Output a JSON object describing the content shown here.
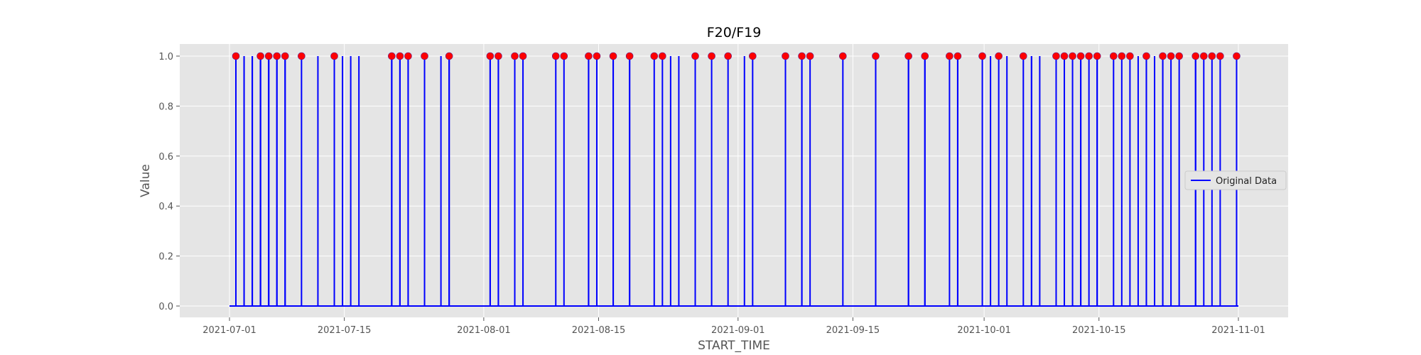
{
  "chart_data": {
    "type": "line",
    "title": "F20/F19",
    "xlabel": "START_TIME",
    "ylabel": "Value",
    "x_range": [
      "2021-07-01",
      "2021-11-01"
    ],
    "ylim": [
      0.0,
      1.0
    ],
    "x_ticks": [
      "2021-07-01",
      "2021-07-15",
      "2021-08-01",
      "2021-08-15",
      "2021-09-01",
      "2021-09-15",
      "2021-10-01",
      "2021-10-15",
      "2021-11-01"
    ],
    "y_ticks": [
      "0.0",
      "0.2",
      "0.4",
      "0.6",
      "0.8",
      "1.0"
    ],
    "grid": true,
    "legend_position": "center-right",
    "series": [
      {
        "name": "Original Data",
        "color": "#0000ff",
        "baseline": 0,
        "spike_value": 1,
        "spike_dates": [
          "2021-07-01",
          "2021-07-01",
          "2021-07-02",
          "2021-07-02",
          "2021-07-03",
          "2021-07-03",
          "2021-07-04",
          "2021-07-04",
          "2021-07-04",
          "2021-07-05",
          "2021-07-05",
          "2021-07-05",
          "2021-07-06",
          "2021-07-06",
          "2021-07-07",
          "2021-07-07",
          "2021-07-09",
          "2021-07-11",
          "2021-07-13",
          "2021-07-14",
          "2021-07-15",
          "2021-07-16",
          "2021-07-20",
          "2021-07-20",
          "2021-07-21",
          "2021-07-21",
          "2021-07-22",
          "2021-07-22",
          "2021-07-24",
          "2021-07-26",
          "2021-07-27",
          "2021-07-27",
          "2021-08-01",
          "2021-08-01",
          "2021-08-02",
          "2021-08-02",
          "2021-08-04",
          "2021-08-05",
          "2021-08-09",
          "2021-08-10",
          "2021-08-13",
          "2021-08-13",
          "2021-08-14",
          "2021-08-16",
          "2021-08-16",
          "2021-08-18",
          "2021-08-18",
          "2021-08-21",
          "2021-08-22",
          "2021-08-23",
          "2021-08-24",
          "2021-08-26",
          "2021-08-28",
          "2021-08-30",
          "2021-09-01",
          "2021-09-02",
          "2021-09-06",
          "2021-09-08",
          "2021-09-08",
          "2021-09-09",
          "2021-09-13",
          "2021-09-17",
          "2021-09-17",
          "2021-09-21",
          "2021-09-21",
          "2021-09-23",
          "2021-09-23",
          "2021-09-26",
          "2021-09-27",
          "2021-09-27",
          "2021-09-30",
          "2021-10-01",
          "2021-10-02",
          "2021-10-03",
          "2021-10-05",
          "2021-10-06",
          "2021-10-06",
          "2021-10-07",
          "2021-10-09",
          "2021-10-10",
          "2021-10-11",
          "2021-10-12",
          "2021-10-12",
          "2021-10-13",
          "2021-10-14",
          "2021-10-14",
          "2021-10-16",
          "2021-10-17",
          "2021-10-18",
          "2021-10-19",
          "2021-10-20",
          "2021-10-20",
          "2021-10-21",
          "2021-10-21",
          "2021-10-22",
          "2021-10-22",
          "2021-10-23",
          "2021-10-24",
          "2021-10-26",
          "2021-10-26",
          "2021-10-27",
          "2021-10-28",
          "2021-10-29",
          "2021-10-31"
        ]
      }
    ],
    "marker_series": {
      "color": "#ff0000",
      "value": 1,
      "dates": [
        "2021-07-01",
        "2021-07-04",
        "2021-07-05",
        "2021-07-06",
        "2021-07-07",
        "2021-07-09",
        "2021-07-13",
        "2021-07-20",
        "2021-07-21",
        "2021-07-22",
        "2021-07-24",
        "2021-07-27",
        "2021-08-01",
        "2021-08-02",
        "2021-08-04",
        "2021-08-05",
        "2021-08-09",
        "2021-08-10",
        "2021-08-13",
        "2021-08-14",
        "2021-08-16",
        "2021-08-18",
        "2021-08-21",
        "2021-08-22",
        "2021-08-26",
        "2021-08-28",
        "2021-08-30",
        "2021-09-02",
        "2021-09-06",
        "2021-09-08",
        "2021-09-09",
        "2021-09-13",
        "2021-09-17",
        "2021-09-21",
        "2021-09-23",
        "2021-09-26",
        "2021-09-27",
        "2021-09-30",
        "2021-10-02",
        "2021-10-05",
        "2021-10-09",
        "2021-10-10",
        "2021-10-11",
        "2021-10-12",
        "2021-10-13",
        "2021-10-14",
        "2021-10-16",
        "2021-10-17",
        "2021-10-18",
        "2021-10-20",
        "2021-10-22",
        "2021-10-23",
        "2021-10-24",
        "2021-10-26",
        "2021-10-27",
        "2021-10-28",
        "2021-10-29",
        "2021-10-31"
      ]
    },
    "colors": {
      "background": "#e5e5e5",
      "grid": "#ffffff",
      "line": "#0000ff",
      "marker": "#ff0000"
    }
  }
}
